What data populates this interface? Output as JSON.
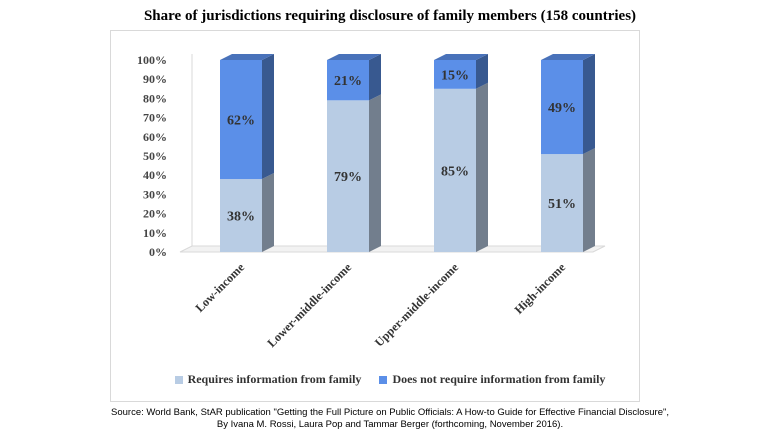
{
  "chart_data": {
    "type": "bar",
    "stacked": true,
    "title": "Share of jurisdictions requiring disclosure of family members (158 countries)",
    "categories": [
      "Low-income",
      "Lower-middle-income",
      "Upper-middle-income",
      "High-income"
    ],
    "series": [
      {
        "name": "Requires information from family",
        "values": [
          38,
          79,
          85,
          51
        ],
        "labels": [
          "38%",
          "79%",
          "85%",
          "51%"
        ],
        "color": "#b8cce4"
      },
      {
        "name": "Does not require information from family",
        "values": [
          62,
          21,
          15,
          49
        ],
        "labels": [
          "62%",
          "21%",
          "15%",
          "49%"
        ],
        "color": "#5b8fe8"
      }
    ],
    "y_ticks": [
      "0%",
      "10%",
      "20%",
      "30%",
      "40%",
      "50%",
      "60%",
      "70%",
      "80%",
      "90%",
      "100%"
    ],
    "ylim": [
      0,
      100
    ],
    "grid": false,
    "legend_position": "bottom"
  },
  "source_text": "Source: World Bank, StAR publication \"Getting the Full Picture on Public Officials: A How-to Guide for Effective Financial Disclosure\", By Ivana M. Rossi, Laura Pop and Tammar Berger (forthcoming, November 2016)."
}
